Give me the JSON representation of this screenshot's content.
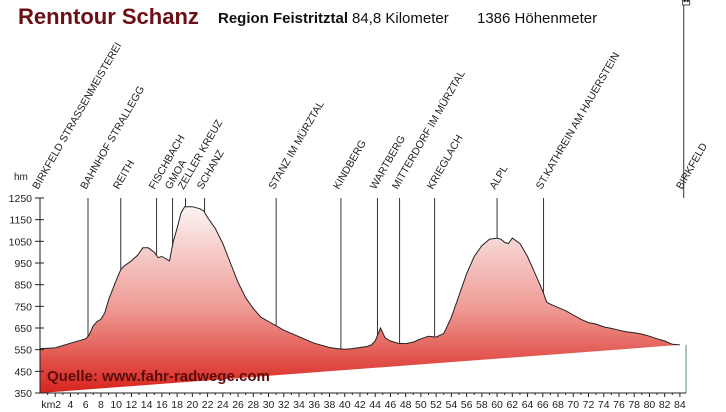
{
  "header": {
    "title": "Renntour Schanz",
    "region": "Region Feistritztal",
    "distance": "84,8 Kilometer",
    "elevation_gain": "1386 Höhenmeter"
  },
  "source_label": "Quelle: www.fahr-radwege.com",
  "colors": {
    "title": "#6b0f14",
    "fill_top": "#fbf3f3",
    "fill_bottom": "#d8231c",
    "line": "#222222"
  },
  "chart_data": {
    "type": "area",
    "title": "Renntour Schanz",
    "xlabel": "km",
    "ylabel": "hm",
    "xlim": [
      0,
      84.8
    ],
    "ylim": [
      350,
      1250
    ],
    "grid": false,
    "y_ticks": [
      350,
      450,
      550,
      650,
      750,
      850,
      950,
      1050,
      1150,
      1250
    ],
    "x_ticks": [
      "km2",
      "4",
      "6",
      "8",
      "10",
      "12",
      "14",
      "16",
      "18",
      "20",
      "22",
      "24",
      "26",
      "28",
      "30",
      "32",
      "34",
      "36",
      "38",
      "40",
      "42",
      "44",
      "46",
      "48",
      "50",
      "52",
      "54",
      "56",
      "58",
      "60",
      "62",
      "64",
      "66",
      "68",
      "70",
      "72",
      "74",
      "76",
      "78",
      "80",
      "82",
      "84"
    ],
    "profile": {
      "km": [
        0,
        2,
        4,
        6,
        6.4,
        7,
        7.5,
        8,
        8.5,
        9,
        10,
        10.6,
        11,
        12,
        12.8,
        13.5,
        14.2,
        15,
        15.5,
        16,
        17,
        17.5,
        18,
        18.5,
        19,
        20,
        21,
        21.5,
        22,
        23,
        24,
        25,
        26,
        27,
        28,
        29,
        30,
        31,
        32,
        33,
        34,
        35,
        36,
        37,
        38,
        39,
        40,
        41,
        42,
        43,
        43.5,
        44,
        44.7,
        45.3,
        46,
        47,
        48,
        49,
        50,
        51,
        52,
        53,
        54,
        55,
        56,
        57,
        58,
        59,
        60,
        60.5,
        61,
        61.5,
        62,
        63,
        64,
        65,
        66,
        66.5,
        67,
        68,
        69,
        70,
        71,
        72,
        73,
        74,
        75,
        76,
        77,
        78,
        79,
        80,
        81,
        82,
        83,
        84,
        84.8
      ],
      "elevation": [
        555,
        558,
        580,
        600,
        615,
        660,
        680,
        690,
        720,
        780,
        870,
        920,
        935,
        960,
        985,
        1020,
        1020,
        1000,
        975,
        980,
        960,
        1050,
        1110,
        1180,
        1210,
        1210,
        1200,
        1190,
        1160,
        1110,
        1040,
        950,
        860,
        790,
        740,
        700,
        680,
        660,
        640,
        625,
        610,
        595,
        580,
        570,
        560,
        555,
        552,
        555,
        560,
        565,
        572,
        590,
        650,
        605,
        590,
        580,
        578,
        585,
        600,
        612,
        608,
        625,
        700,
        800,
        900,
        980,
        1030,
        1060,
        1065,
        1060,
        1045,
        1040,
        1065,
        1040,
        980,
        900,
        820,
        770,
        760,
        745,
        730,
        710,
        690,
        675,
        668,
        655,
        648,
        640,
        632,
        628,
        622,
        612,
        600,
        590,
        575,
        572
      ]
    },
    "waypoints": [
      {
        "name": "BIRKFELD STRASSENMEISTEREI",
        "km": 0
      },
      {
        "name": "BAHNHOF STRALLEGG",
        "km": 6.3
      },
      {
        "name": "REITH",
        "km": 10.6
      },
      {
        "name": "FISCHBACH",
        "km": 15.3
      },
      {
        "name": "GMOA",
        "km": 17.4
      },
      {
        "name": "ZELLER KREUZ",
        "km": 19.1
      },
      {
        "name": "SCHANZ",
        "km": 21.6
      },
      {
        "name": "STANZ IM MÜRZTAL",
        "km": 31.0
      },
      {
        "name": "KINDBERG",
        "km": 39.5
      },
      {
        "name": "WARTBERG",
        "km": 44.3
      },
      {
        "name": "MITTERDORF IM MÜRZTAL",
        "km": 47.2
      },
      {
        "name": "KRIEGLACH",
        "km": 51.8
      },
      {
        "name": "ALPL",
        "km": 60.0
      },
      {
        "name": "ST.KATHREIN AM HAUERSTEIN",
        "km": 66.1
      },
      {
        "name": "BIRKFELD",
        "km": 84.5
      }
    ]
  }
}
